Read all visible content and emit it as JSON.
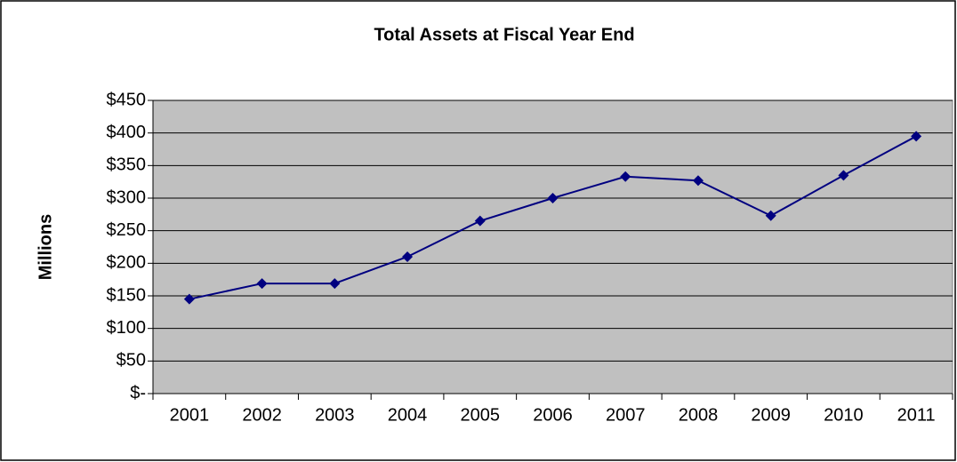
{
  "chart_data": {
    "type": "line",
    "title": "Total Assets at Fiscal Year End",
    "y_label": "Millions",
    "categories": [
      "2001",
      "2002",
      "2003",
      "2004",
      "2005",
      "2006",
      "2007",
      "2008",
      "2009",
      "2010",
      "2011"
    ],
    "values": [
      145,
      169,
      169,
      210,
      265,
      300,
      333,
      327,
      273,
      335,
      395
    ],
    "color": "#000080",
    "plot_background": "#c0c0c0",
    "grid": true,
    "ylim": [
      0,
      450
    ],
    "yticks": [
      {
        "value": 0,
        "label": "$-"
      },
      {
        "value": 50,
        "label": "$50"
      },
      {
        "value": 100,
        "label": "$100"
      },
      {
        "value": 150,
        "label": "$150"
      },
      {
        "value": 200,
        "label": "$200"
      },
      {
        "value": 250,
        "label": "$250"
      },
      {
        "value": 300,
        "label": "$300"
      },
      {
        "value": 350,
        "label": "$350"
      },
      {
        "value": 400,
        "label": "$400"
      },
      {
        "value": 450,
        "label": "$450"
      }
    ]
  }
}
